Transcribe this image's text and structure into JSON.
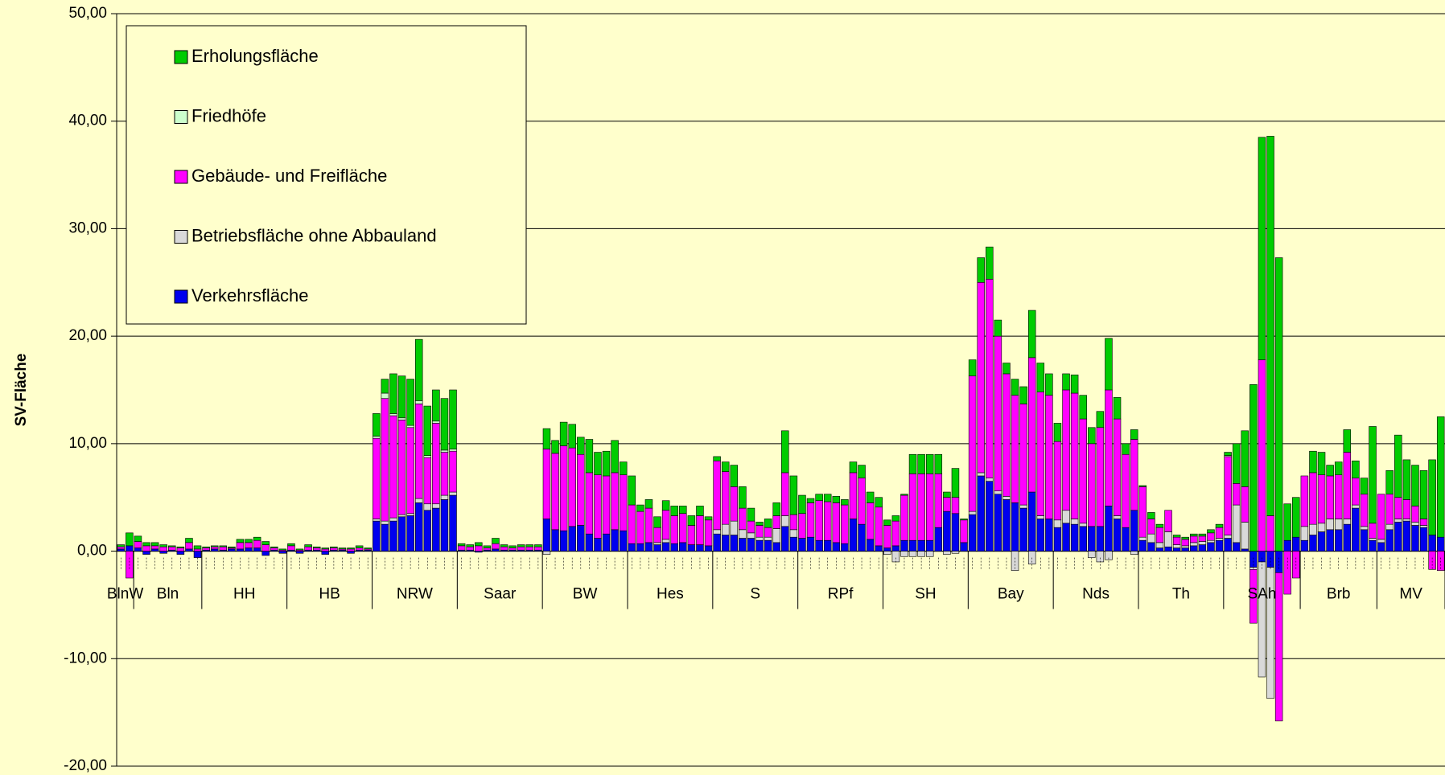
{
  "chart_data": {
    "type": "stacked_bar",
    "y_label": "SV-Fläche",
    "ylim": [
      -20,
      50
    ],
    "yticks": [
      {
        "value": -20,
        "label": "-20,00"
      },
      {
        "value": -10,
        "label": "-10,00"
      },
      {
        "value": 0,
        "label": "0,00"
      },
      {
        "value": 10,
        "label": "10,00"
      },
      {
        "value": 20,
        "label": "20,00"
      },
      {
        "value": 30,
        "label": "30,00"
      },
      {
        "value": 40,
        "label": "40,00"
      },
      {
        "value": 50,
        "label": "50,00"
      }
    ],
    "grid": true,
    "legend": "top-left",
    "series": [
      {
        "name": "Verkehrsfläche",
        "color": "#0000ee"
      },
      {
        "name": "Betriebsfläche ohne Abbauland",
        "color": "#d9d9d9"
      },
      {
        "name": "Gebäude- und Freifläche",
        "color": "#ff00ff"
      },
      {
        "name": "Friedhöfe",
        "color": "#ccffcc"
      },
      {
        "name": "Erholungsfläche",
        "color": "#00cc00"
      }
    ],
    "groups": [
      {
        "label": "BlnW",
        "stacks": [
          [
            0.2,
            0,
            0.2,
            0,
            0.2
          ],
          [
            0.5,
            0,
            -2.5,
            0,
            1.2
          ]
        ]
      },
      {
        "label": "Bln",
        "stacks": [
          [
            0.3,
            0,
            0.6,
            0,
            0.5
          ],
          [
            -0.3,
            0,
            0.5,
            0,
            0.3
          ],
          [
            0.2,
            0,
            0.3,
            0,
            0.3
          ],
          [
            -0.2,
            0,
            0.4,
            0,
            0.2
          ],
          [
            0.1,
            0,
            0.3,
            0,
            0.1
          ],
          [
            -0.3,
            0,
            0.3,
            0,
            0.1
          ],
          [
            0.2,
            0,
            0.6,
            0,
            0.4
          ],
          [
            -0.6,
            0,
            0.2,
            0,
            0.3
          ]
        ]
      },
      {
        "label": "HH",
        "stacks": [
          [
            0.1,
            0,
            0.2,
            0,
            0.1
          ],
          [
            0.2,
            0,
            0.2,
            0,
            0.1
          ],
          [
            0.1,
            0,
            0.3,
            0,
            0.1
          ],
          [
            0.2,
            0,
            0.1,
            0,
            0.1
          ],
          [
            0.2,
            0,
            0.6,
            0,
            0.3
          ],
          [
            0.3,
            0,
            0.5,
            0,
            0.3
          ],
          [
            0.3,
            0,
            0.7,
            0,
            0.3
          ],
          [
            -0.4,
            0,
            0.6,
            0,
            0.3
          ],
          [
            0.1,
            0,
            0.2,
            0,
            0.1
          ],
          [
            -0.2,
            0,
            0.1,
            0,
            0.1
          ]
        ]
      },
      {
        "label": "HB",
        "stacks": [
          [
            0.1,
            0,
            0.4,
            0,
            0.2
          ],
          [
            -0.2,
            0,
            0.1,
            0,
            0.1
          ],
          [
            0.1,
            0,
            0.3,
            0,
            0.2
          ],
          [
            0.1,
            0,
            0.2,
            0,
            0.1
          ],
          [
            -0.3,
            0,
            0.2,
            0,
            0.1
          ],
          [
            0.1,
            0,
            0.2,
            0,
            0.1
          ],
          [
            0.1,
            0,
            0.1,
            0,
            0.1
          ],
          [
            -0.2,
            0,
            0.2,
            0,
            0.1
          ],
          [
            0.1,
            0,
            0.2,
            0,
            0.2
          ],
          [
            0.1,
            0,
            0.1,
            0,
            0.1
          ]
        ]
      },
      {
        "label": "NRW",
        "stacks": [
          [
            2.8,
            0.2,
            7.5,
            0.2,
            2.1
          ],
          [
            2.5,
            0.3,
            11.4,
            0.5,
            1.3
          ],
          [
            2.8,
            0.3,
            9.5,
            0.2,
            3.7
          ],
          [
            3.2,
            0.2,
            8.8,
            0.2,
            3.9
          ],
          [
            3.3,
            0.2,
            8,
            0.2,
            4.3
          ],
          [
            4.5,
            0.4,
            8.8,
            0.3,
            5.7
          ],
          [
            3.8,
            0.6,
            4.3,
            0.2,
            4.6
          ],
          [
            4,
            0.4,
            7.5,
            0.2,
            2.9
          ],
          [
            4.8,
            0.4,
            4,
            0.2,
            4.8
          ],
          [
            5.2,
            0.3,
            3.8,
            0.2,
            5.5
          ]
        ]
      },
      {
        "label": "Saar",
        "stacks": [
          [
            0.1,
            0,
            0.4,
            0,
            0.2
          ],
          [
            0.1,
            0,
            0.3,
            0,
            0.2
          ],
          [
            -0.1,
            0,
            0.5,
            0,
            0.3
          ],
          [
            0.1,
            0,
            0.2,
            0,
            0.2
          ],
          [
            0.2,
            0,
            0.5,
            0,
            0.5
          ],
          [
            0.1,
            0,
            0.3,
            0,
            0.2
          ],
          [
            0.1,
            0,
            0.2,
            0,
            0.2
          ],
          [
            0.1,
            0,
            0.3,
            0,
            0.2
          ],
          [
            0.1,
            0,
            0.3,
            0,
            0.2
          ],
          [
            0.1,
            0,
            0.3,
            0,
            0.2
          ]
        ]
      },
      {
        "label": "BW",
        "stacks": [
          [
            3,
            -0.3,
            6.5,
            0,
            1.9
          ],
          [
            2,
            0,
            7.1,
            0,
            1.2
          ],
          [
            1.9,
            0,
            7.9,
            0,
            2.2
          ],
          [
            2.3,
            0,
            7.3,
            0,
            2.2
          ],
          [
            2.4,
            0,
            6.6,
            0,
            1.6
          ],
          [
            1.6,
            0,
            5.7,
            0,
            3.1
          ],
          [
            1.2,
            0,
            5.9,
            0,
            2.1
          ],
          [
            1.6,
            0,
            5.4,
            0,
            2.3
          ],
          [
            2,
            0,
            5.3,
            0,
            3
          ],
          [
            1.9,
            0,
            5.2,
            0,
            1.2
          ]
        ]
      },
      {
        "label": "Hes",
        "stacks": [
          [
            0.7,
            0,
            3.6,
            0,
            2.7
          ],
          [
            0.7,
            0,
            3,
            0,
            0.6
          ],
          [
            0.8,
            0,
            3.2,
            0,
            0.8
          ],
          [
            0.6,
            0.2,
            1.4,
            0,
            1
          ],
          [
            0.8,
            0.3,
            2.7,
            0,
            0.9
          ],
          [
            0.7,
            0,
            2.6,
            0,
            0.9
          ],
          [
            0.8,
            0,
            2.7,
            0,
            0.7
          ],
          [
            0.6,
            0,
            1.8,
            0,
            0.9
          ],
          [
            0.6,
            0,
            2.7,
            0,
            0.9
          ],
          [
            0.5,
            0,
            2.4,
            0,
            0.3
          ]
        ]
      },
      {
        "label": "S",
        "stacks": [
          [
            1.6,
            0.4,
            6.4,
            0,
            0.4
          ],
          [
            1.5,
            1,
            4.9,
            0,
            0.9
          ],
          [
            1.5,
            1.3,
            3.2,
            0,
            2
          ],
          [
            1.2,
            0.8,
            2,
            0,
            2
          ],
          [
            1.2,
            0.5,
            1.1,
            0,
            1.2
          ],
          [
            1,
            0.3,
            1.1,
            0,
            0.3
          ],
          [
            1,
            0.3,
            0.9,
            0,
            0.8
          ],
          [
            0.8,
            1.3,
            1.2,
            0,
            1.2
          ],
          [
            2.3,
            1,
            4,
            0,
            3.9
          ],
          [
            1.3,
            0.7,
            1.4,
            0,
            3.6
          ]
        ]
      },
      {
        "label": "RPf",
        "stacks": [
          [
            1.2,
            0,
            2.3,
            0,
            1.7
          ],
          [
            1.3,
            0,
            3.2,
            0,
            0.4
          ],
          [
            1,
            0,
            3.7,
            0,
            0.6
          ],
          [
            1,
            0,
            3.6,
            0,
            0.7
          ],
          [
            0.8,
            0,
            3.7,
            0,
            0.6
          ],
          [
            0.7,
            0,
            3.6,
            0,
            0.5
          ],
          [
            3,
            0,
            4.3,
            0,
            1
          ],
          [
            2.5,
            0,
            4.3,
            0,
            1.2
          ],
          [
            1.1,
            0,
            3.4,
            0,
            1
          ],
          [
            0.5,
            0,
            3.6,
            0,
            0.9
          ]
        ]
      },
      {
        "label": "SH",
        "stacks": [
          [
            0.3,
            -0.3,
            2.1,
            0,
            0.5
          ],
          [
            0.5,
            -1,
            2.3,
            0,
            0.5
          ],
          [
            1,
            -0.5,
            4.2,
            0,
            0.1
          ],
          [
            1,
            -0.5,
            6.2,
            0,
            1.8
          ],
          [
            1,
            -0.5,
            6.2,
            0,
            1.8
          ],
          [
            1,
            -0.5,
            6.2,
            0,
            1.8
          ],
          [
            2.2,
            0,
            5,
            0,
            1.8
          ],
          [
            3.7,
            -0.3,
            1.3,
            0,
            0.5
          ],
          [
            3.5,
            -0.2,
            1.5,
            0,
            2.7
          ],
          [
            0.8,
            0,
            2.1,
            0,
            0.1
          ]
        ]
      },
      {
        "label": "Bay",
        "stacks": [
          [
            3.4,
            0.3,
            12.6,
            0,
            1.5
          ],
          [
            7,
            0.3,
            17.7,
            0,
            2.3
          ],
          [
            6.5,
            0.3,
            18.5,
            0,
            3
          ],
          [
            5.3,
            0.3,
            14.4,
            0,
            1.5
          ],
          [
            4.8,
            0.3,
            11.4,
            0,
            1
          ],
          [
            4.5,
            -1.8,
            10,
            0,
            1.5
          ],
          [
            4,
            0.3,
            9.4,
            0,
            1.6
          ],
          [
            5.5,
            -1.2,
            12.5,
            0,
            4.4
          ],
          [
            3,
            0.3,
            11.5,
            0,
            2.7
          ],
          [
            3,
            0,
            11.5,
            0,
            2
          ]
        ]
      },
      {
        "label": "Nds",
        "stacks": [
          [
            2.2,
            0.7,
            7.3,
            0,
            1.7
          ],
          [
            2.6,
            1.2,
            11.2,
            0,
            1.5
          ],
          [
            2.5,
            0.5,
            11.7,
            0,
            1.7
          ],
          [
            2.3,
            0.3,
            9.7,
            0,
            2.2
          ],
          [
            2.3,
            -0.6,
            7.7,
            0,
            1.5
          ],
          [
            2.3,
            -1,
            9.2,
            0,
            1.5
          ],
          [
            4.2,
            -0.8,
            10.8,
            0,
            4.8
          ],
          [
            3,
            0.3,
            9,
            0,
            2
          ],
          [
            2.2,
            0,
            6.8,
            0,
            1
          ],
          [
            3.8,
            -0.3,
            6.6,
            0,
            0.9
          ]
        ]
      },
      {
        "label": "Th",
        "stacks": [
          [
            1,
            0.3,
            4.7,
            0,
            0.1
          ],
          [
            0.8,
            0.8,
            1.4,
            0,
            0.6
          ],
          [
            0.3,
            0.5,
            1.4,
            0,
            0.3
          ],
          [
            0.4,
            1.4,
            2,
            0,
            0
          ],
          [
            0.3,
            0.3,
            0.7,
            0,
            0.2
          ],
          [
            0.3,
            0.2,
            0.6,
            0,
            0.2
          ],
          [
            0.5,
            0.3,
            0.6,
            0,
            0.2
          ],
          [
            0.6,
            0.3,
            0.5,
            0,
            0.2
          ],
          [
            0.8,
            0.2,
            0.7,
            0,
            0.3
          ],
          [
            1,
            0.2,
            1,
            0,
            0.3
          ]
        ]
      },
      {
        "label": "SAh",
        "stacks": [
          [
            1.2,
            0.3,
            7.3,
            0.1,
            0.3
          ],
          [
            0.8,
            3.5,
            2,
            0,
            3.7
          ],
          [
            0.2,
            2.5,
            3.3,
            0,
            5.2
          ],
          [
            -1.5,
            -0.2,
            -5,
            0,
            15.5
          ],
          [
            -1,
            -10.7,
            17.8,
            0,
            20.7
          ],
          [
            -1.5,
            -12.2,
            3.3,
            0,
            35.3
          ],
          [
            -2,
            0,
            -13.8,
            0,
            27.3
          ],
          [
            1,
            0,
            -4,
            0,
            3.4
          ],
          [
            1.3,
            0,
            -2.5,
            0,
            3.7
          ]
        ]
      },
      {
        "label": "Brb",
        "stacks": [
          [
            1,
            1.3,
            4.7,
            0,
            0
          ],
          [
            1.5,
            1,
            4.8,
            0,
            2
          ],
          [
            1.8,
            0.8,
            4.5,
            0,
            2.1
          ],
          [
            2,
            1,
            4,
            0,
            1
          ],
          [
            2,
            1,
            4.1,
            0,
            1.2
          ],
          [
            2.5,
            0.5,
            6.2,
            0,
            2.1
          ],
          [
            4,
            0.3,
            2.5,
            0,
            1.6
          ],
          [
            2,
            0.3,
            3,
            0,
            1.5
          ],
          [
            1,
            0.2,
            1.4,
            0,
            9
          ]
        ]
      },
      {
        "label": "MV",
        "stacks": [
          [
            0.8,
            0.3,
            4.2,
            0,
            0
          ],
          [
            2,
            0.5,
            2.8,
            0,
            2.2
          ],
          [
            2.7,
            0.3,
            2,
            0,
            5.8
          ],
          [
            2.8,
            0.2,
            1.8,
            0,
            3.7
          ],
          [
            2.4,
            0.3,
            1.5,
            0,
            3.8
          ],
          [
            2.2,
            0.2,
            0.6,
            0,
            4.5
          ],
          [
            1.5,
            0,
            -1.7,
            0,
            7
          ],
          [
            1.3,
            0,
            -1.8,
            0,
            11.2
          ]
        ]
      }
    ]
  }
}
